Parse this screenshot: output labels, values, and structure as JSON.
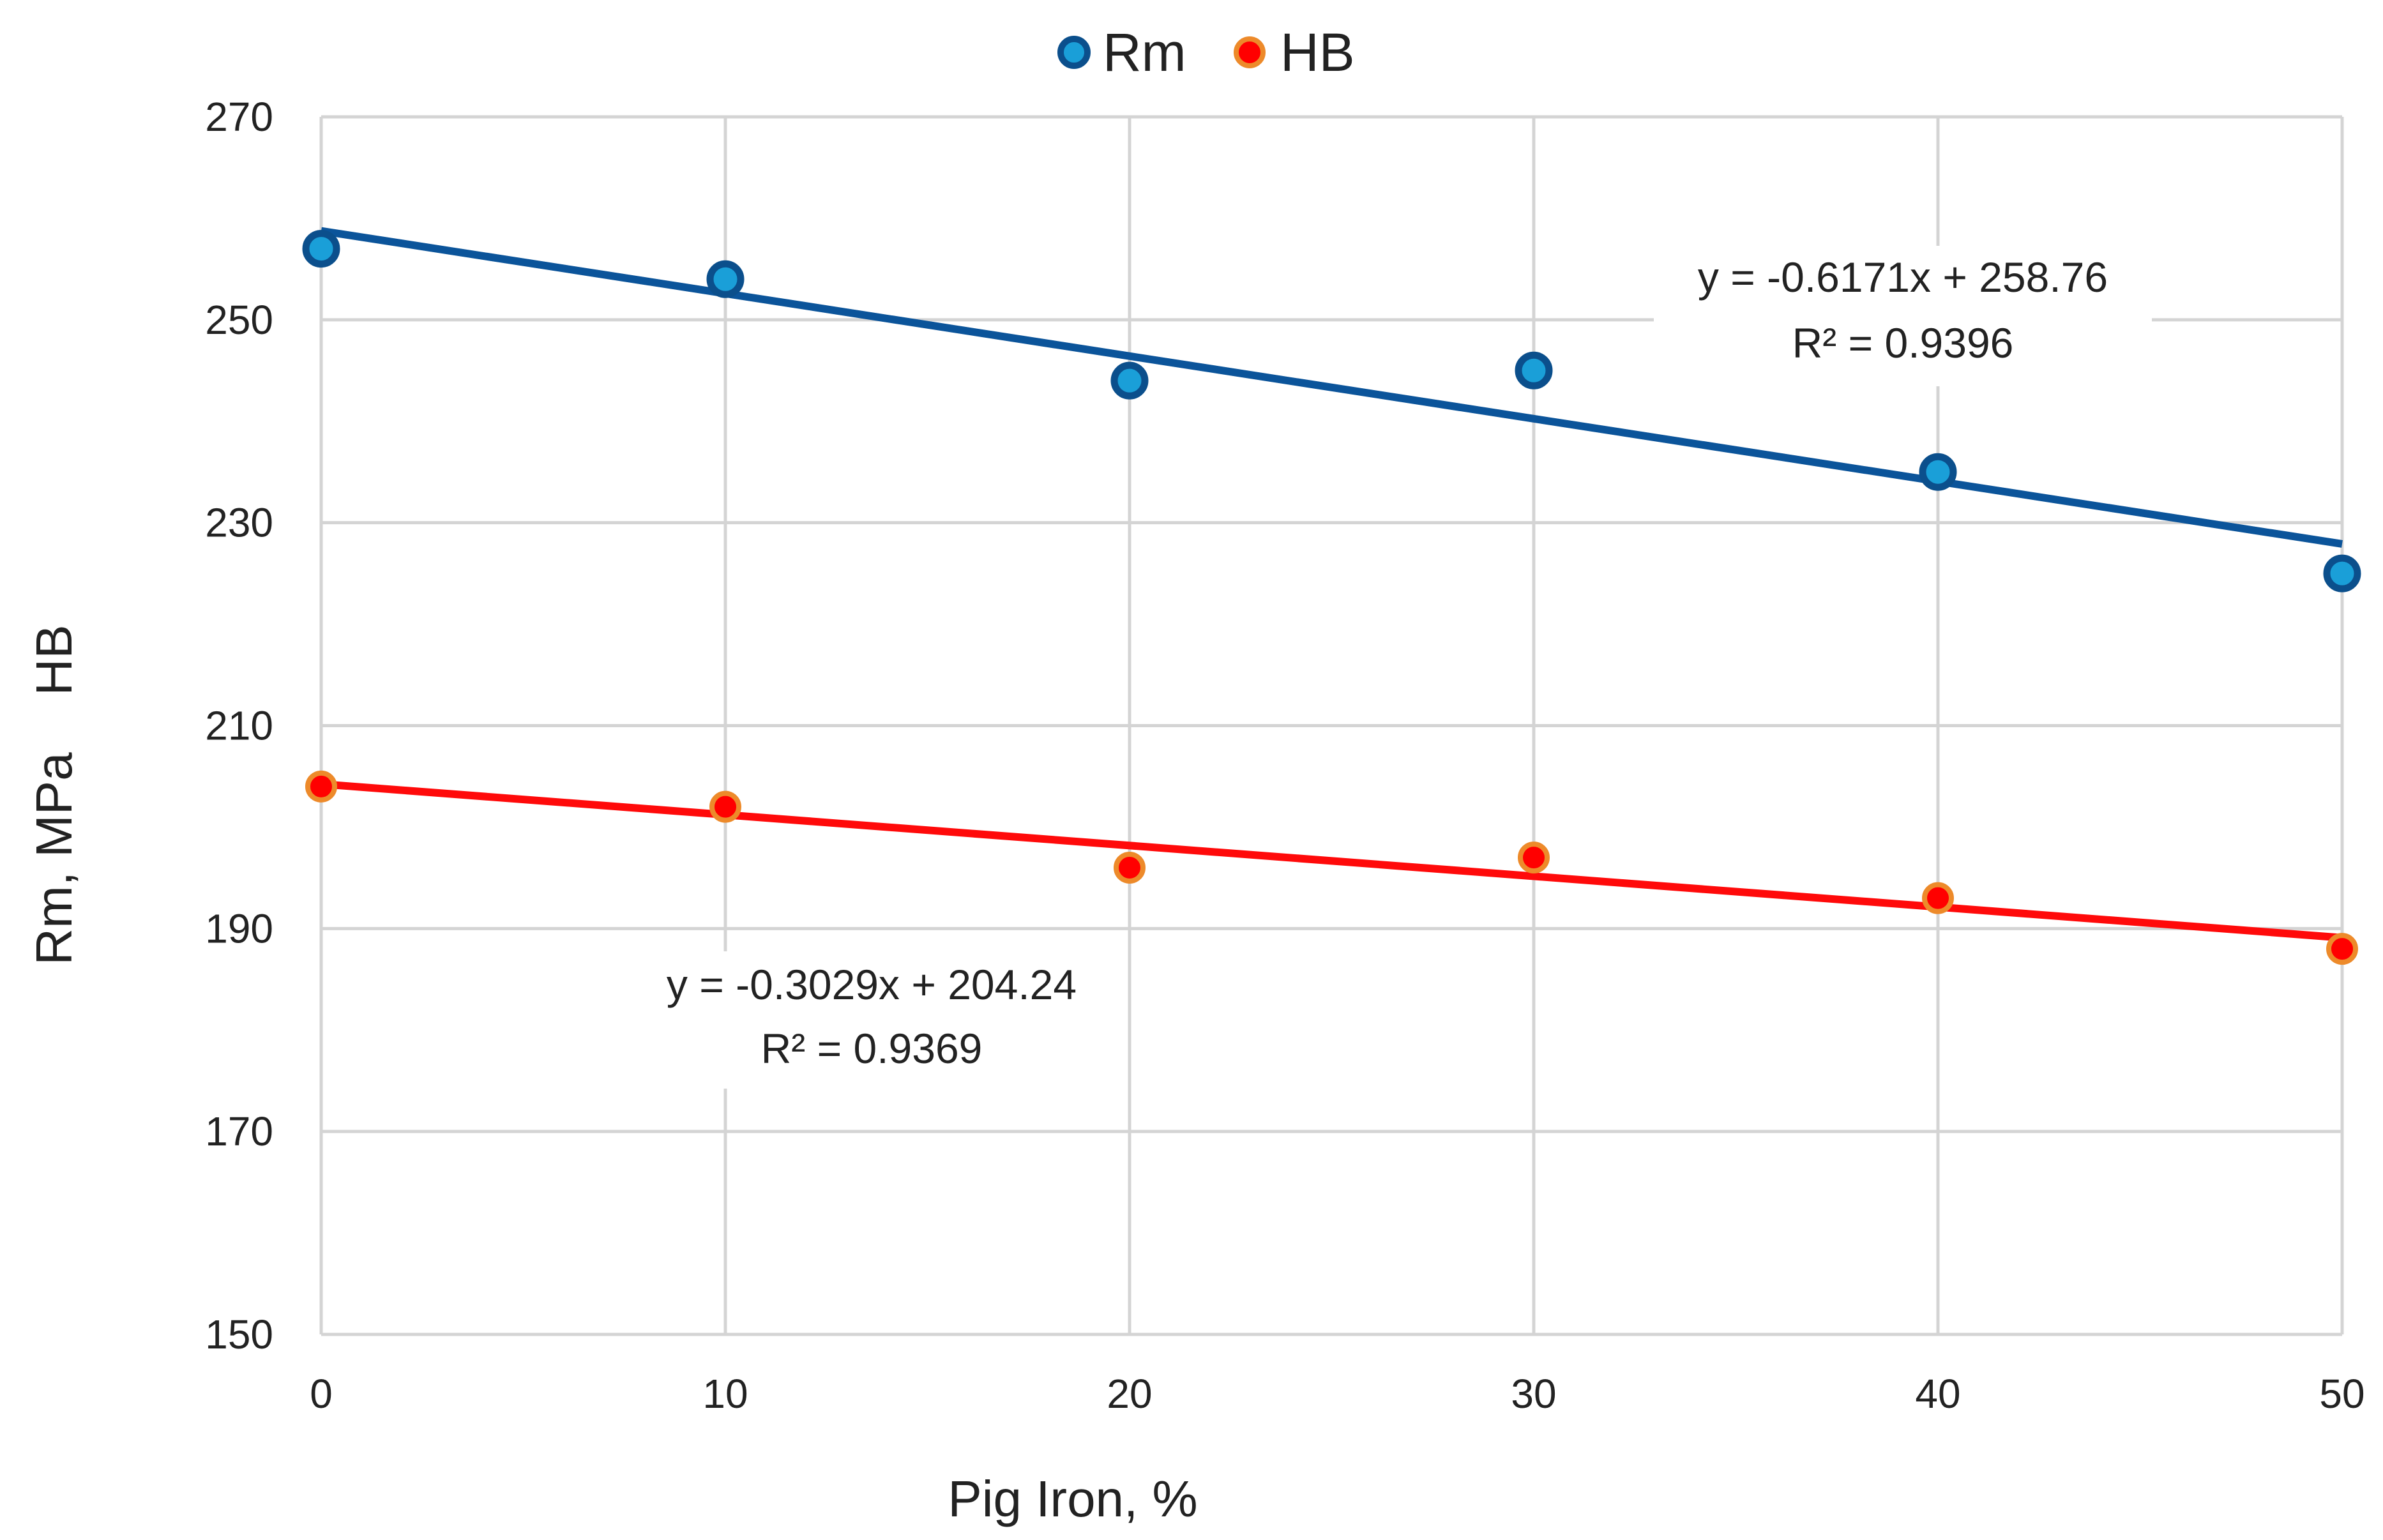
{
  "chart_data": {
    "type": "scatter",
    "title": "",
    "xlabel": "Pig Iron, %",
    "ylabel": "Rm, MPa    HB",
    "xlim": [
      0,
      50
    ],
    "ylim": [
      150,
      270
    ],
    "x_ticks": [
      "0",
      "10",
      "20",
      "30",
      "40",
      "50"
    ],
    "y_ticks": [
      "150",
      "170",
      "190",
      "210",
      "230",
      "250",
      "270"
    ],
    "grid": true,
    "legend_position": "top-center",
    "x": [
      0,
      10,
      20,
      30,
      40,
      50
    ],
    "series": [
      {
        "name": "Rm",
        "values": [
          257,
          254,
          244,
          245,
          235,
          225
        ],
        "color": "#1a9fd8",
        "edge_color": "#0b4f8c",
        "trendline": {
          "slope": -0.6171,
          "intercept": 258.76,
          "color": "#0b549a",
          "equation": "y = -0.6171x + 258.76",
          "r2": "R² = 0.9396"
        }
      },
      {
        "name": "HB",
        "values": [
          204,
          202,
          196,
          197,
          193,
          188
        ],
        "color": "#ff0000",
        "edge_color": "#ed8a2a",
        "trendline": {
          "slope": -0.3029,
          "intercept": 204.24,
          "color": "#ff0a0a",
          "equation": "y = -0.3029x + 204.24",
          "r2": "R² = 0.9369"
        }
      }
    ]
  }
}
